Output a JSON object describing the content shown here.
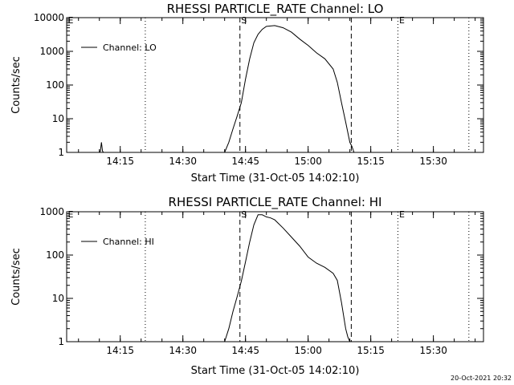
{
  "chart_data": [
    {
      "type": "line",
      "title": "RHESSI PARTICLE_RATE Channel: LO",
      "xlabel": "Start Time (31-Oct-05 14:02:10)",
      "ylabel": "Counts/sec",
      "y_scale": "log",
      "ylim": [
        1,
        10000
      ],
      "xlim": [
        "14:02:10",
        "15:42:00"
      ],
      "x_ticks": [
        "14:15",
        "14:30",
        "14:45",
        "15:00",
        "15:15",
        "15:30"
      ],
      "y_ticks": [
        "1",
        "10",
        "100",
        "1000",
        "10000"
      ],
      "legend": {
        "entries": [
          "Channel: LO"
        ],
        "placement": "top-left"
      },
      "markers": {
        "letters": [
          {
            "label": "E",
            "x": "14:02:10"
          },
          {
            "label": "S",
            "x": "14:43:40"
          },
          {
            "label": "E",
            "x": "15:21:30"
          }
        ],
        "dashed_lines_x": [
          "14:43:40",
          "15:10:20"
        ],
        "dotted_lines_x": [
          "14:21:00",
          "15:21:30",
          "15:38:30"
        ]
      },
      "series": [
        {
          "name": "Channel: LO",
          "x": [
            "14:10:00",
            "14:10:15",
            "14:10:30",
            "14:10:45",
            "14:11:00",
            "14:40:00",
            "14:41:00",
            "14:42:00",
            "14:43:00",
            "14:44:00",
            "14:45:00",
            "14:46:00",
            "14:47:00",
            "14:48:00",
            "14:49:00",
            "14:50:00",
            "14:52:00",
            "14:54:00",
            "14:56:00",
            "14:58:00",
            "15:00:00",
            "15:02:00",
            "15:04:00",
            "15:06:00",
            "15:07:00",
            "15:08:00",
            "15:09:00",
            "15:10:00",
            "15:10:30",
            "15:11:00"
          ],
          "y": [
            1,
            1.1,
            2,
            1.1,
            1,
            1,
            2,
            5,
            12,
            30,
            150,
            600,
            1800,
            3200,
            4500,
            5500,
            5800,
            5000,
            3700,
            2300,
            1500,
            900,
            600,
            300,
            120,
            30,
            8,
            2,
            1.5,
            1
          ]
        }
      ]
    },
    {
      "type": "line",
      "title": "RHESSI PARTICLE_RATE Channel: HI",
      "xlabel": "Start Time (31-Oct-05 14:02:10)",
      "ylabel": "Counts/sec",
      "y_scale": "log",
      "ylim": [
        1,
        1000
      ],
      "xlim": [
        "14:02:10",
        "15:42:00"
      ],
      "x_ticks": [
        "14:15",
        "14:30",
        "14:45",
        "15:00",
        "15:15",
        "15:30"
      ],
      "y_ticks": [
        "1",
        "10",
        "100",
        "1000"
      ],
      "legend": {
        "entries": [
          "Channel: HI"
        ],
        "placement": "top-left"
      },
      "markers": {
        "letters": [
          {
            "label": "E",
            "x": "14:02:10"
          },
          {
            "label": "S",
            "x": "14:43:40"
          },
          {
            "label": "E",
            "x": "15:21:30"
          }
        ],
        "dashed_lines_x": [
          "14:43:40",
          "15:10:20"
        ],
        "dotted_lines_x": [
          "14:21:00",
          "15:21:30",
          "15:38:30"
        ]
      },
      "series": [
        {
          "name": "Channel: HI",
          "x": [
            "14:40:00",
            "14:41:00",
            "14:42:00",
            "14:43:00",
            "14:44:00",
            "14:45:00",
            "14:46:00",
            "14:47:00",
            "14:48:00",
            "14:49:00",
            "14:50:00",
            "14:51:00",
            "14:52:00",
            "14:54:00",
            "14:56:00",
            "14:58:00",
            "15:00:00",
            "15:02:00",
            "15:04:00",
            "15:06:00",
            "15:07:00",
            "15:08:00",
            "15:09:00",
            "15:09:30",
            "15:10:00"
          ],
          "y": [
            1,
            2,
            5,
            11,
            25,
            70,
            200,
            500,
            850,
            850,
            760,
            720,
            650,
            420,
            260,
            160,
            90,
            65,
            52,
            38,
            26,
            8,
            2,
            1.3,
            1
          ]
        }
      ]
    }
  ],
  "footer": {
    "timestamp": "20-Oct-2021 20:32"
  }
}
